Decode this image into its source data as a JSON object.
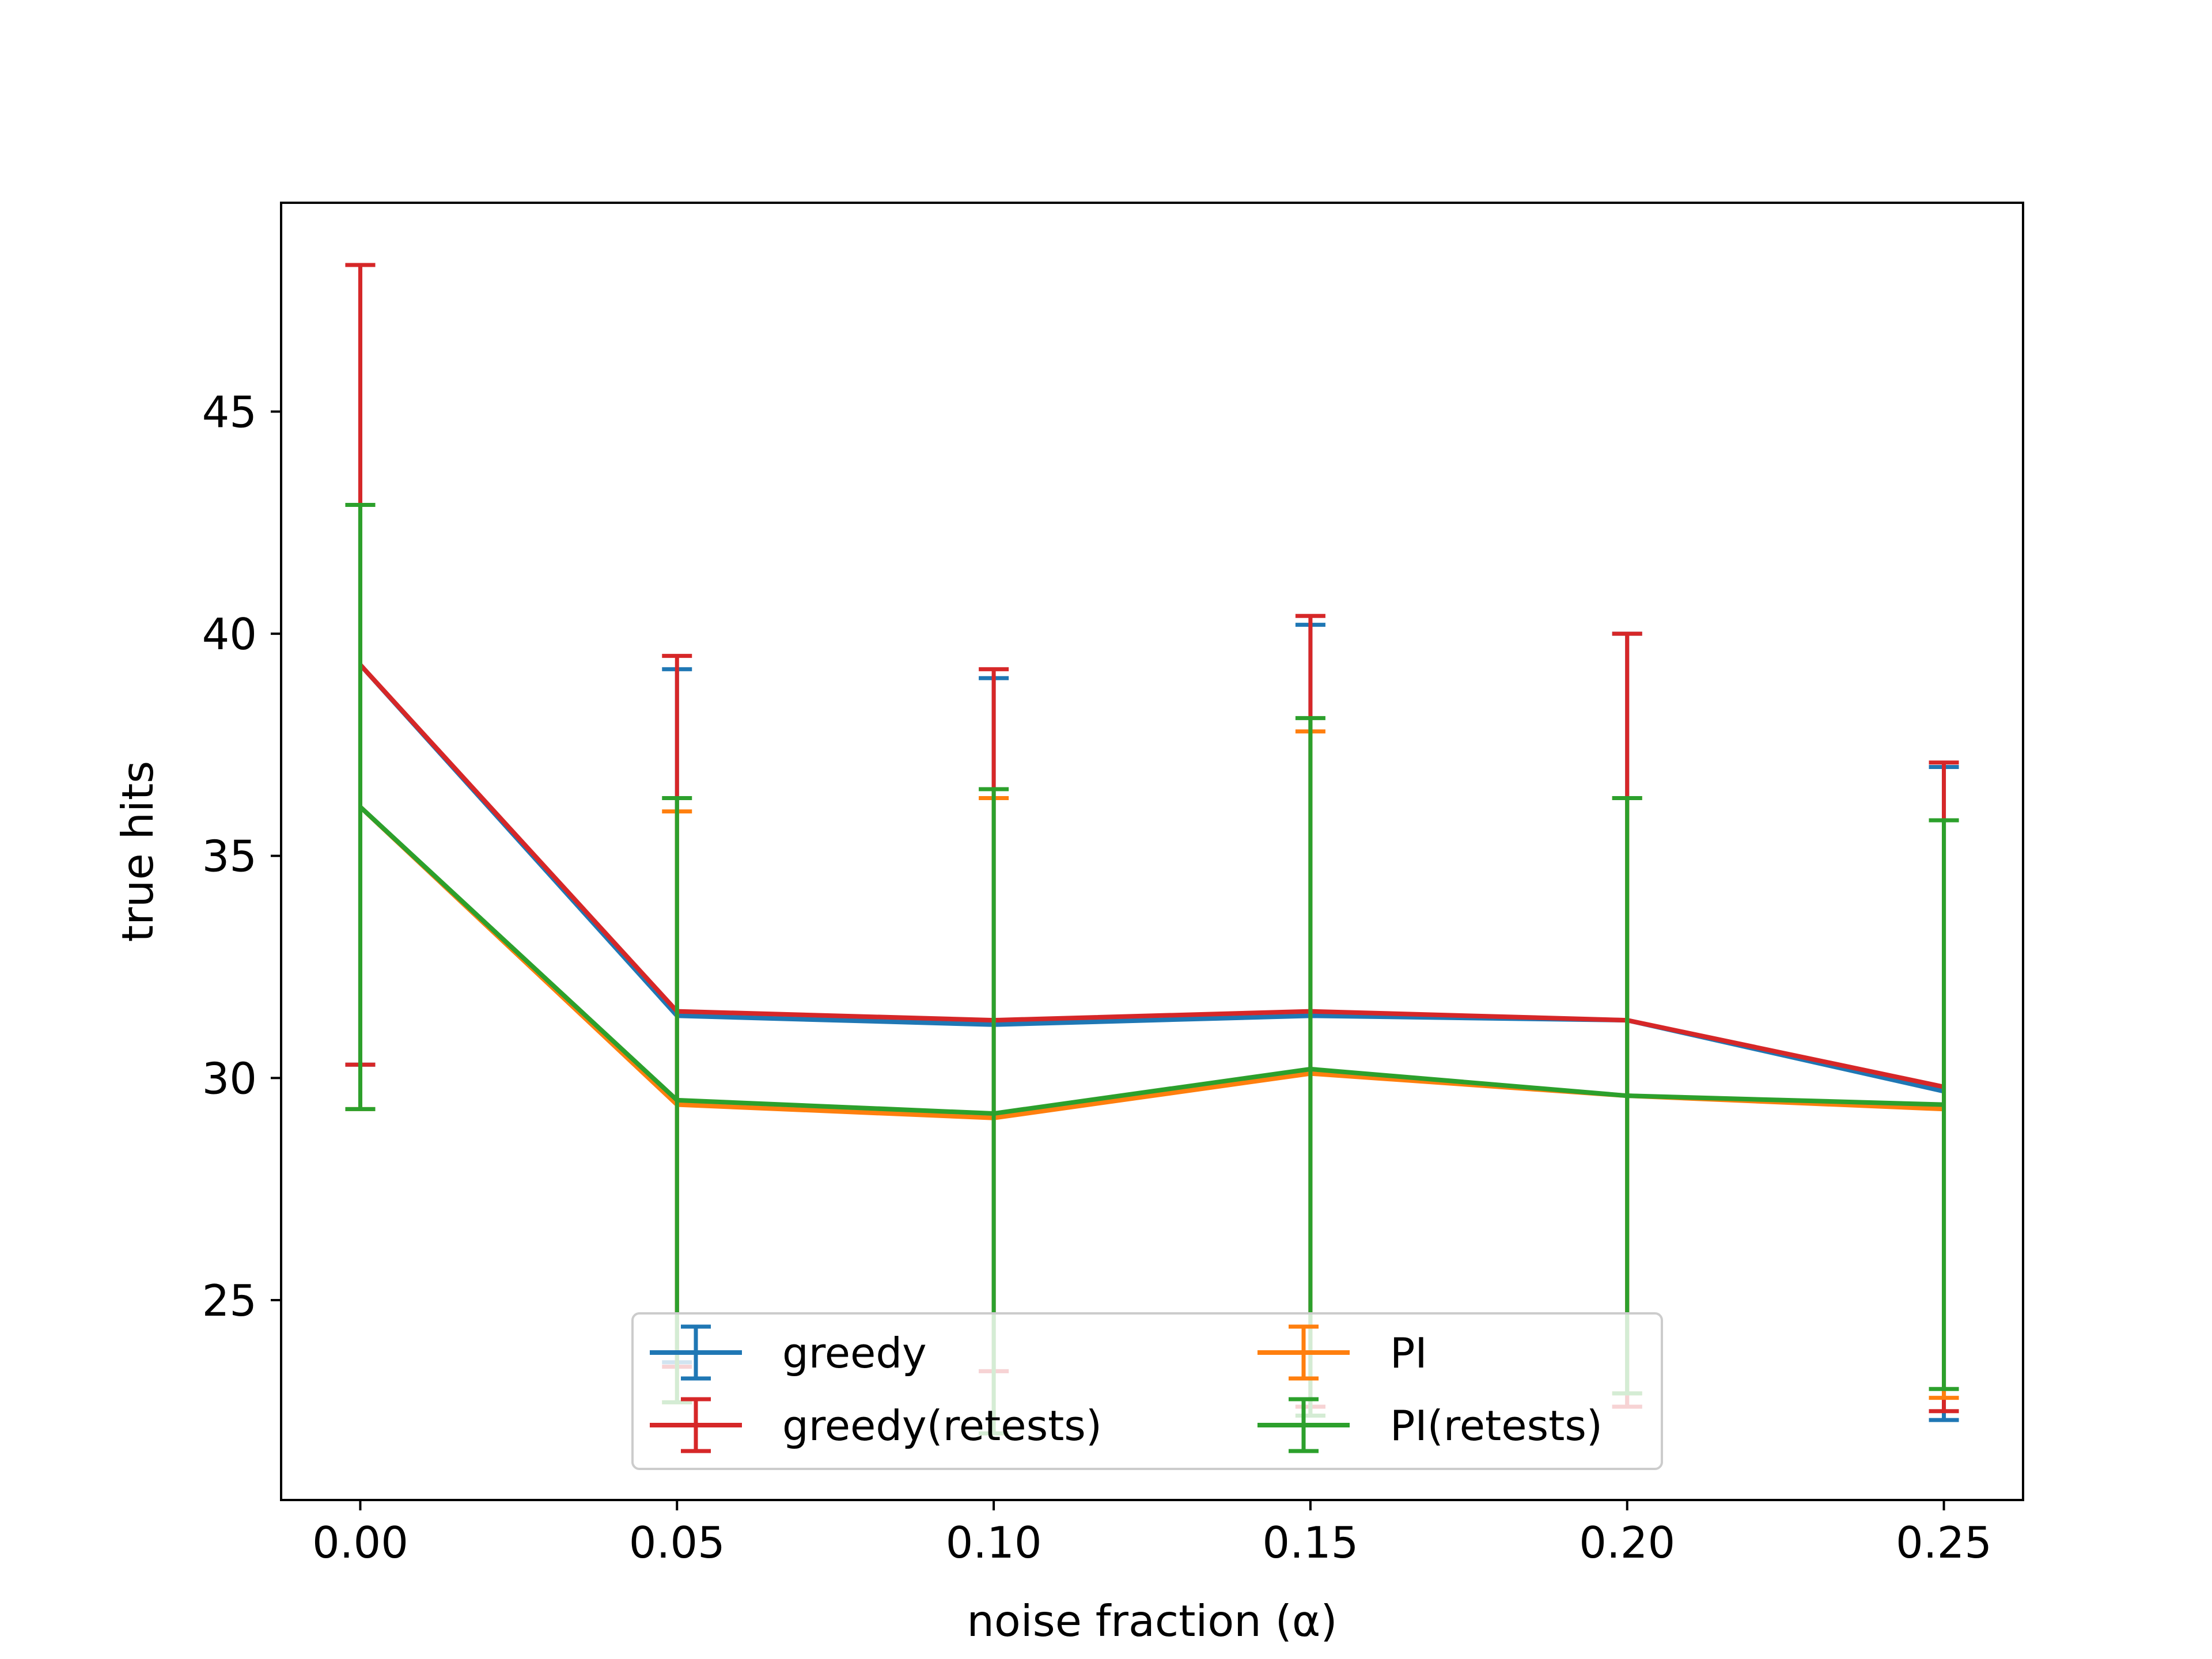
{
  "chart_data": {
    "type": "line",
    "title": "",
    "xlabel": "noise fraction (α)",
    "ylabel": "true hits",
    "xlim": [
      -0.0125,
      0.2625
    ],
    "ylim": [
      20.5,
      49.7
    ],
    "xticks": [
      0.0,
      0.05,
      0.1,
      0.15,
      0.2,
      0.25
    ],
    "xtick_labels": [
      "0.00",
      "0.05",
      "0.10",
      "0.15",
      "0.20",
      "0.25"
    ],
    "yticks": [
      25,
      30,
      35,
      40,
      45
    ],
    "ytick_labels": [
      "25",
      "30",
      "35",
      "40",
      "45"
    ],
    "grid": false,
    "legend_position": "lower center",
    "x": [
      0.0,
      0.05,
      0.1,
      0.15,
      0.2,
      0.25
    ],
    "series": [
      {
        "name": "greedy",
        "color": "#1f77b4",
        "values": [
          39.3,
          31.4,
          31.2,
          31.4,
          31.3,
          29.7
        ],
        "yerr_low": [
          30.3,
          23.6,
          23.4,
          22.6,
          22.6,
          22.3
        ],
        "yerr_high": [
          48.3,
          39.2,
          39.0,
          40.2,
          40.0,
          37.0
        ]
      },
      {
        "name": "greedy(retests)",
        "color": "#d62728",
        "values": [
          39.3,
          31.5,
          31.3,
          31.5,
          31.3,
          29.8
        ],
        "yerr_low": [
          30.3,
          23.5,
          23.4,
          22.6,
          22.6,
          22.5
        ],
        "yerr_high": [
          48.3,
          39.5,
          39.2,
          40.4,
          40.0,
          37.1
        ]
      },
      {
        "name": "PI",
        "color": "#ff7f0e",
        "values": [
          36.1,
          29.4,
          29.1,
          30.1,
          29.6,
          29.3
        ],
        "yerr_low": [
          29.3,
          22.7,
          22.0,
          22.4,
          22.9,
          22.8
        ],
        "yerr_high": [
          42.9,
          36.0,
          36.3,
          37.8,
          36.3,
          35.8
        ]
      },
      {
        "name": "PI(retests)",
        "color": "#2ca02c",
        "values": [
          36.1,
          29.5,
          29.2,
          30.2,
          29.6,
          29.4
        ],
        "yerr_low": [
          29.3,
          22.7,
          22.0,
          22.4,
          22.9,
          23.0
        ],
        "yerr_high": [
          42.9,
          36.3,
          36.5,
          38.1,
          36.3,
          35.8
        ]
      }
    ],
    "legend_order": [
      0,
      2,
      1,
      3
    ]
  }
}
